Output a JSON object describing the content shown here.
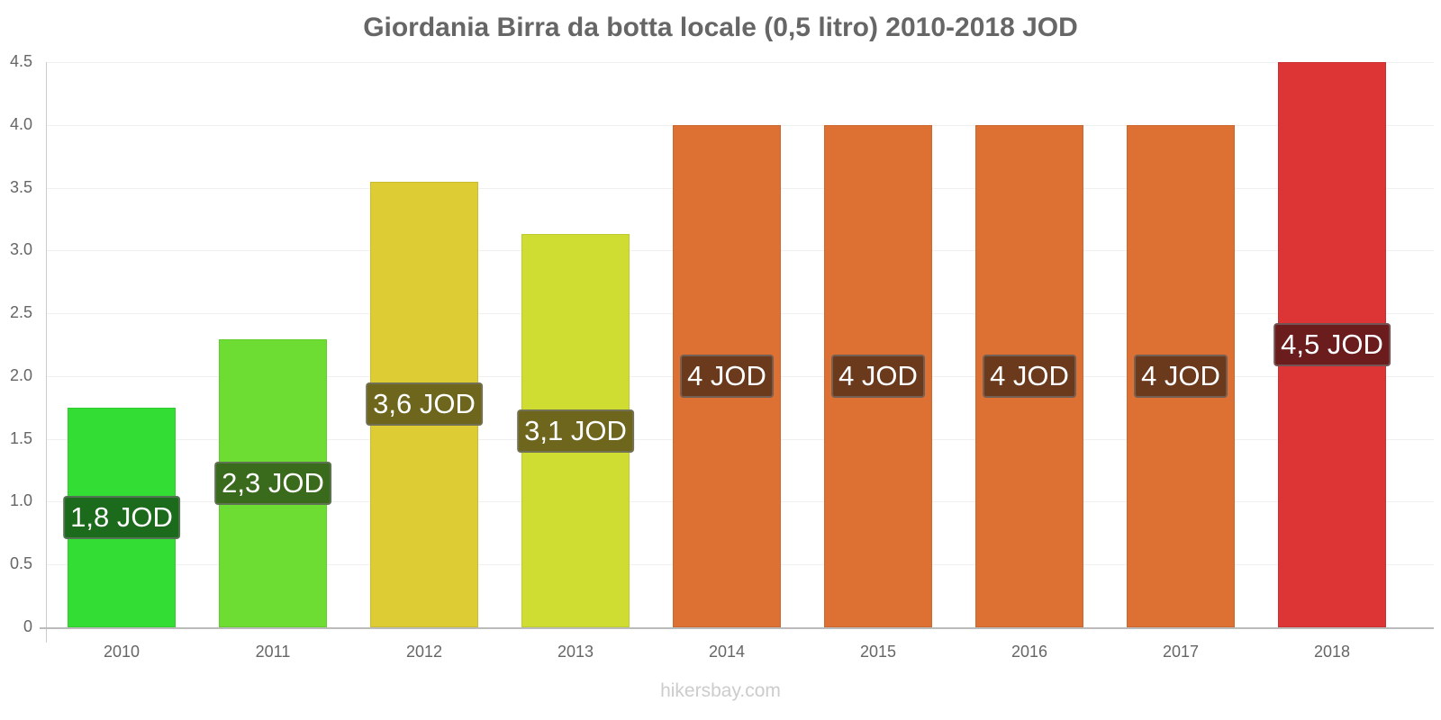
{
  "chart_data": {
    "type": "bar",
    "title": "Giordania Birra da botta locale (0,5 litro) 2010-2018 JOD",
    "xlabel": "",
    "ylabel": "",
    "ylim": [
      0,
      4.5
    ],
    "yticks": [
      "0",
      "0.5",
      "1.0",
      "1.5",
      "2.0",
      "2.5",
      "3.0",
      "3.5",
      "4.0",
      "4.5"
    ],
    "grid": true,
    "categories": [
      "2010",
      "2011",
      "2012",
      "2013",
      "2014",
      "2015",
      "2016",
      "2017",
      "2018"
    ],
    "values": [
      1.75,
      2.29,
      3.55,
      3.13,
      4.0,
      4.0,
      4.0,
      4.0,
      4.5
    ],
    "data_labels": [
      "1,8 JOD",
      "2,3 JOD",
      "3,6 JOD",
      "3,1 JOD",
      "4 JOD",
      "4 JOD",
      "4 JOD",
      "4 JOD",
      "4,5 JOD"
    ],
    "bar_colors": [
      "#33dd33",
      "#6ddd33",
      "#ddcc33",
      "#cfdd33",
      "#dd7033",
      "#dd7033",
      "#dd7033",
      "#dd7033",
      "#dd3535"
    ],
    "label_colors": [
      "#1c6b1c",
      "#3a6b1c",
      "#6d661c",
      "#6d661c",
      "#6b3a1c",
      "#6b3a1c",
      "#6b3a1c",
      "#6b3a1c",
      "#6b1c1c"
    ]
  },
  "footer": {
    "source": "hikersbay.com"
  }
}
